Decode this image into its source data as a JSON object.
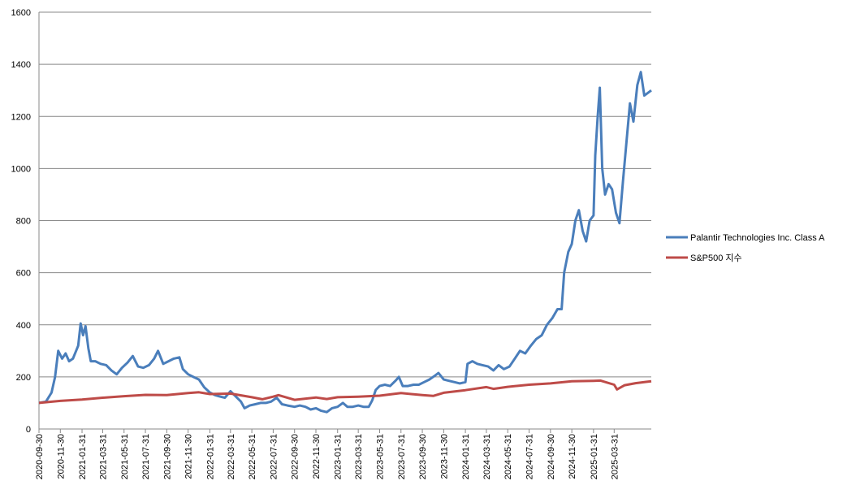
{
  "chart_data": {
    "type": "line",
    "title": "",
    "xlabel": "",
    "ylabel": "",
    "ylim": [
      0,
      1600
    ],
    "y_ticks": [
      0,
      200,
      400,
      600,
      800,
      1000,
      1200,
      1400,
      1600
    ],
    "y_tick_labels": [
      "0",
      "200",
      "400",
      "600",
      "800",
      "1000",
      "1200",
      "1400",
      "1600"
    ],
    "x_range": [
      "2020-09-30",
      "2025-07-15"
    ],
    "x_tick_labels": [
      "2020-09-30",
      "2020-11-30",
      "2021-01-31",
      "2021-03-31",
      "2021-05-31",
      "2021-07-31",
      "2021-09-30",
      "2021-11-30",
      "2022-01-31",
      "2022-03-31",
      "2022-05-31",
      "2022-07-31",
      "2022-09-30",
      "2022-11-30",
      "2023-01-31",
      "2023-03-31",
      "2023-05-31",
      "2023-07-31",
      "2023-09-30",
      "2023-11-30",
      "2024-01-31",
      "2024-03-31",
      "2024-05-31",
      "2024-07-31",
      "2024-09-30",
      "2024-11-30",
      "2025-01-31",
      "2025-03-31"
    ],
    "grid": "horizontal",
    "legend_position": "right",
    "series": [
      {
        "name": "Palantir Technologies Inc. Class A",
        "color": "#4a7ebb",
        "points": [
          [
            "2020-09-30",
            100
          ],
          [
            "2020-10-20",
            105
          ],
          [
            "2020-11-05",
            140
          ],
          [
            "2020-11-15",
            200
          ],
          [
            "2020-11-24",
            300
          ],
          [
            "2020-12-05",
            270
          ],
          [
            "2020-12-15",
            290
          ],
          [
            "2020-12-25",
            260
          ],
          [
            "2021-01-05",
            270
          ],
          [
            "2021-01-20",
            320
          ],
          [
            "2021-01-27",
            405
          ],
          [
            "2021-02-03",
            360
          ],
          [
            "2021-02-10",
            395
          ],
          [
            "2021-02-18",
            310
          ],
          [
            "2021-02-25",
            260
          ],
          [
            "2021-03-10",
            260
          ],
          [
            "2021-03-25",
            250
          ],
          [
            "2021-04-10",
            245
          ],
          [
            "2021-04-25",
            225
          ],
          [
            "2021-05-10",
            210
          ],
          [
            "2021-05-25",
            235
          ],
          [
            "2021-06-10",
            255
          ],
          [
            "2021-06-25",
            280
          ],
          [
            "2021-07-10",
            240
          ],
          [
            "2021-07-25",
            235
          ],
          [
            "2021-08-10",
            245
          ],
          [
            "2021-08-25",
            270
          ],
          [
            "2021-09-05",
            300
          ],
          [
            "2021-09-20",
            250
          ],
          [
            "2021-10-05",
            260
          ],
          [
            "2021-10-20",
            270
          ],
          [
            "2021-11-05",
            275
          ],
          [
            "2021-11-15",
            230
          ],
          [
            "2021-11-30",
            210
          ],
          [
            "2021-12-15",
            200
          ],
          [
            "2021-12-31",
            190
          ],
          [
            "2022-01-15",
            160
          ],
          [
            "2022-01-31",
            140
          ],
          [
            "2022-02-15",
            130
          ],
          [
            "2022-02-28",
            125
          ],
          [
            "2022-03-15",
            120
          ],
          [
            "2022-03-31",
            145
          ],
          [
            "2022-04-15",
            125
          ],
          [
            "2022-04-30",
            105
          ],
          [
            "2022-05-10",
            80
          ],
          [
            "2022-05-25",
            90
          ],
          [
            "2022-06-10",
            95
          ],
          [
            "2022-06-25",
            100
          ],
          [
            "2022-07-10",
            100
          ],
          [
            "2022-07-25",
            105
          ],
          [
            "2022-08-10",
            120
          ],
          [
            "2022-08-25",
            95
          ],
          [
            "2022-09-10",
            90
          ],
          [
            "2022-09-30",
            85
          ],
          [
            "2022-10-15",
            90
          ],
          [
            "2022-10-31",
            85
          ],
          [
            "2022-11-15",
            75
          ],
          [
            "2022-11-30",
            80
          ],
          [
            "2022-12-15",
            70
          ],
          [
            "2022-12-31",
            65
          ],
          [
            "2023-01-15",
            80
          ],
          [
            "2023-01-31",
            85
          ],
          [
            "2023-02-15",
            100
          ],
          [
            "2023-02-28",
            85
          ],
          [
            "2023-03-15",
            85
          ],
          [
            "2023-03-31",
            90
          ],
          [
            "2023-04-15",
            85
          ],
          [
            "2023-04-30",
            85
          ],
          [
            "2023-05-10",
            110
          ],
          [
            "2023-05-20",
            150
          ],
          [
            "2023-05-31",
            165
          ],
          [
            "2023-06-15",
            170
          ],
          [
            "2023-06-30",
            165
          ],
          [
            "2023-07-15",
            185
          ],
          [
            "2023-07-25",
            200
          ],
          [
            "2023-08-05",
            165
          ],
          [
            "2023-08-20",
            165
          ],
          [
            "2023-09-05",
            170
          ],
          [
            "2023-09-20",
            170
          ],
          [
            "2023-10-05",
            180
          ],
          [
            "2023-10-20",
            190
          ],
          [
            "2023-11-05",
            205
          ],
          [
            "2023-11-15",
            215
          ],
          [
            "2023-11-30",
            190
          ],
          [
            "2023-12-15",
            185
          ],
          [
            "2023-12-31",
            180
          ],
          [
            "2024-01-15",
            175
          ],
          [
            "2024-01-31",
            180
          ],
          [
            "2024-02-06",
            250
          ],
          [
            "2024-02-20",
            260
          ],
          [
            "2024-03-05",
            250
          ],
          [
            "2024-03-20",
            245
          ],
          [
            "2024-04-05",
            240
          ],
          [
            "2024-04-20",
            225
          ],
          [
            "2024-05-05",
            245
          ],
          [
            "2024-05-20",
            230
          ],
          [
            "2024-06-05",
            240
          ],
          [
            "2024-06-20",
            270
          ],
          [
            "2024-07-05",
            300
          ],
          [
            "2024-07-20",
            290
          ],
          [
            "2024-08-05",
            320
          ],
          [
            "2024-08-20",
            345
          ],
          [
            "2024-09-05",
            360
          ],
          [
            "2024-09-20",
            400
          ],
          [
            "2024-10-05",
            425
          ],
          [
            "2024-10-20",
            460
          ],
          [
            "2024-11-01",
            460
          ],
          [
            "2024-11-08",
            600
          ],
          [
            "2024-11-20",
            680
          ],
          [
            "2024-11-30",
            710
          ],
          [
            "2024-12-10",
            800
          ],
          [
            "2024-12-20",
            840
          ],
          [
            "2024-12-31",
            760
          ],
          [
            "2025-01-10",
            720
          ],
          [
            "2025-01-20",
            800
          ],
          [
            "2025-01-31",
            820
          ],
          [
            "2025-02-05",
            1050
          ],
          [
            "2025-02-12",
            1200
          ],
          [
            "2025-02-18",
            1310
          ],
          [
            "2025-02-25",
            1000
          ],
          [
            "2025-03-05",
            900
          ],
          [
            "2025-03-15",
            940
          ],
          [
            "2025-03-25",
            920
          ],
          [
            "2025-04-05",
            830
          ],
          [
            "2025-04-15",
            790
          ],
          [
            "2025-04-25",
            950
          ],
          [
            "2025-05-05",
            1100
          ],
          [
            "2025-05-15",
            1250
          ],
          [
            "2025-05-25",
            1180
          ],
          [
            "2025-06-05",
            1320
          ],
          [
            "2025-06-15",
            1370
          ],
          [
            "2025-06-25",
            1280
          ],
          [
            "2025-07-05",
            1290
          ],
          [
            "2025-07-15",
            1300
          ]
        ]
      },
      {
        "name": "S&P500 지수",
        "color": "#be4b48",
        "points": [
          [
            "2020-09-30",
            100
          ],
          [
            "2020-11-30",
            108
          ],
          [
            "2021-01-31",
            113
          ],
          [
            "2021-03-31",
            120
          ],
          [
            "2021-05-31",
            126
          ],
          [
            "2021-07-31",
            131
          ],
          [
            "2021-09-30",
            130
          ],
          [
            "2021-11-30",
            138
          ],
          [
            "2021-12-31",
            141
          ],
          [
            "2022-01-31",
            134
          ],
          [
            "2022-03-31",
            136
          ],
          [
            "2022-05-31",
            122
          ],
          [
            "2022-06-30",
            114
          ],
          [
            "2022-07-31",
            124
          ],
          [
            "2022-08-15",
            130
          ],
          [
            "2022-09-30",
            112
          ],
          [
            "2022-11-30",
            121
          ],
          [
            "2022-12-31",
            115
          ],
          [
            "2023-01-31",
            122
          ],
          [
            "2023-03-31",
            124
          ],
          [
            "2023-05-31",
            128
          ],
          [
            "2023-07-31",
            138
          ],
          [
            "2023-09-30",
            130
          ],
          [
            "2023-10-31",
            127
          ],
          [
            "2023-11-30",
            139
          ],
          [
            "2024-01-31",
            149
          ],
          [
            "2024-03-31",
            161
          ],
          [
            "2024-04-20",
            154
          ],
          [
            "2024-05-31",
            162
          ],
          [
            "2024-07-31",
            170
          ],
          [
            "2024-09-30",
            175
          ],
          [
            "2024-11-30",
            183
          ],
          [
            "2025-01-31",
            185
          ],
          [
            "2025-02-20",
            186
          ],
          [
            "2025-03-31",
            170
          ],
          [
            "2025-04-08",
            152
          ],
          [
            "2025-04-30",
            168
          ],
          [
            "2025-05-31",
            176
          ],
          [
            "2025-06-30",
            181
          ],
          [
            "2025-07-15",
            183
          ]
        ]
      }
    ]
  }
}
